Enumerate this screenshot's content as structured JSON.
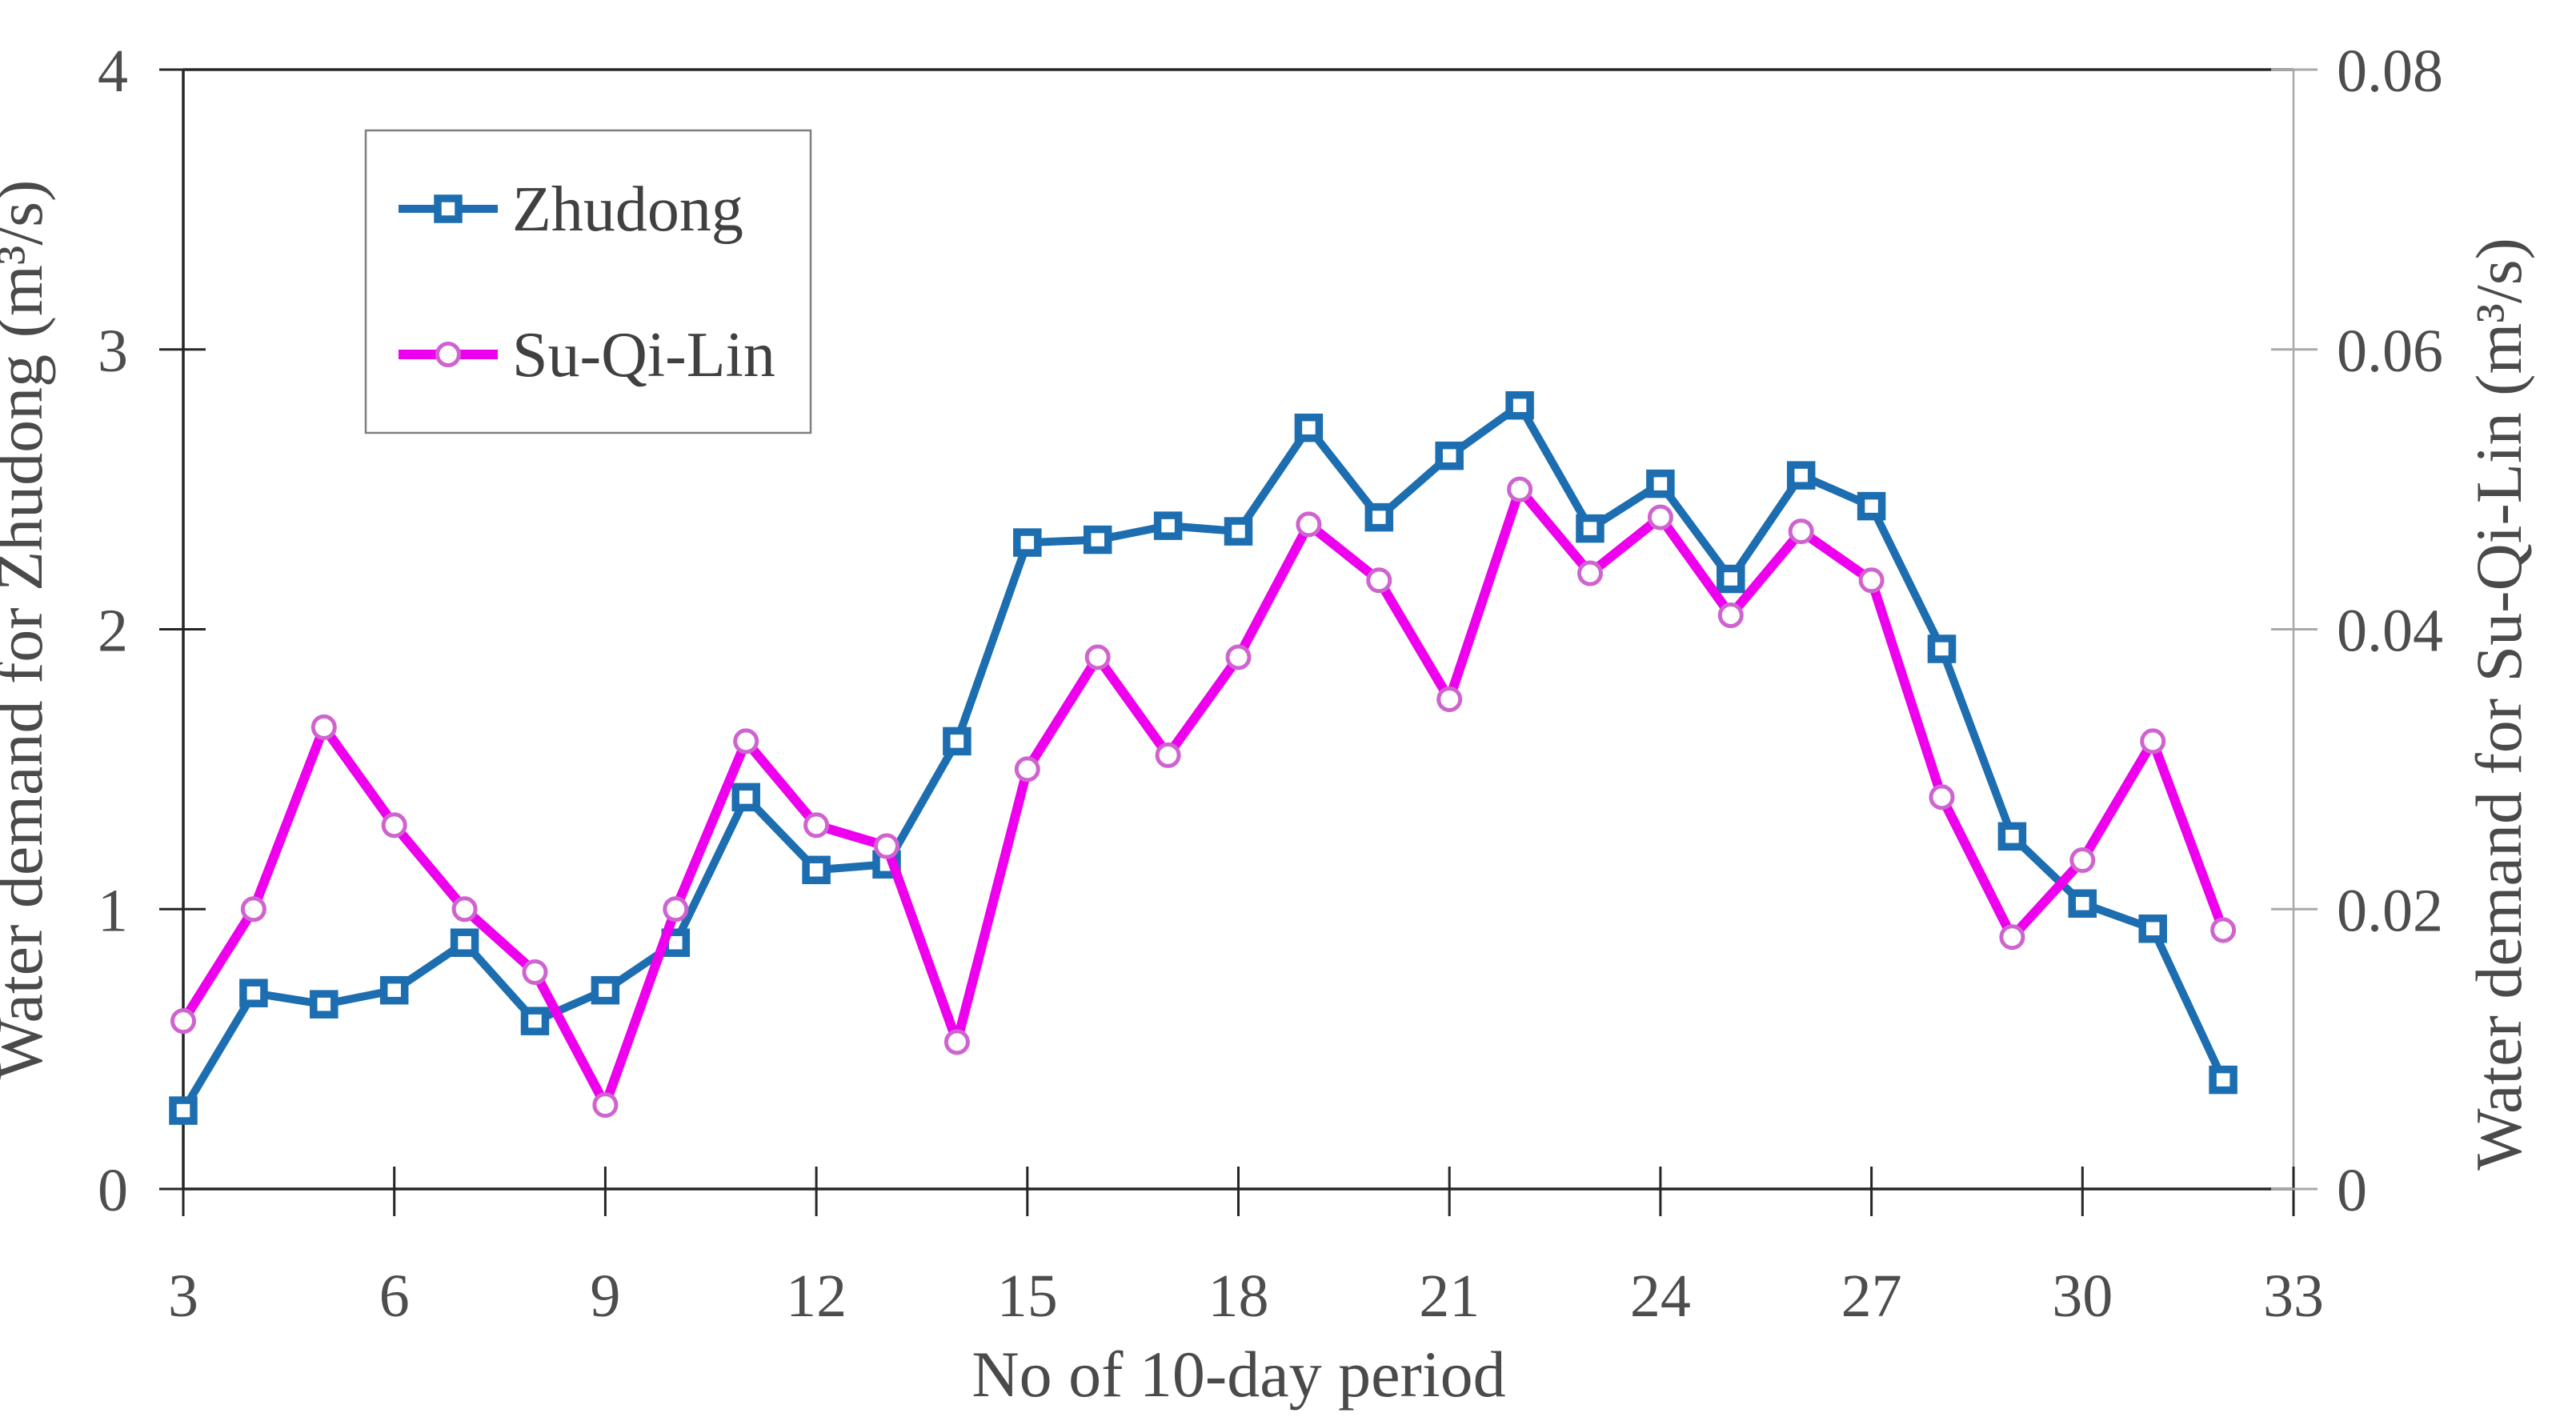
{
  "chart_data": {
    "type": "line",
    "title": "",
    "xlabel": "No of 10-day period",
    "x_range": [
      3,
      33
    ],
    "x_ticks": [
      3,
      6,
      9,
      12,
      15,
      18,
      21,
      24,
      27,
      30,
      33
    ],
    "x": [
      3,
      4,
      5,
      6,
      7,
      8,
      9,
      10,
      11,
      12,
      13,
      14,
      15,
      16,
      17,
      18,
      19,
      20,
      21,
      22,
      23,
      24,
      25,
      26,
      27,
      28,
      29,
      30,
      31,
      32
    ],
    "y_left": {
      "label": "Water demand for Zhudong (m³/s)",
      "range": [
        0,
        4
      ],
      "ticks": [
        0,
        1,
        2,
        3,
        4
      ]
    },
    "y_right": {
      "label": "Water demand for Su-Qi-Lin (m³/s)",
      "range": [
        0,
        0.08
      ],
      "ticks": [
        0,
        0.02,
        0.04,
        0.06,
        0.08
      ]
    },
    "grid": false,
    "legend": {
      "position": "top-left-inside",
      "entries": [
        "Zhudong",
        "Su-Qi-Lin"
      ]
    },
    "series": [
      {
        "name": "Zhudong",
        "axis": "left",
        "marker": "square",
        "color": "#1C6EB0",
        "marker_stroke": "#1C6EB0",
        "line_width": 10,
        "values": [
          0.28,
          0.7,
          0.66,
          0.71,
          0.88,
          0.6,
          0.71,
          0.88,
          1.4,
          1.14,
          1.16,
          1.6,
          2.31,
          2.32,
          2.37,
          2.35,
          2.72,
          2.4,
          2.62,
          2.8,
          2.36,
          2.52,
          2.18,
          2.55,
          2.44,
          1.93,
          1.26,
          1.02,
          0.93,
          0.39
        ]
      },
      {
        "name": "Su-Qi-Lin",
        "axis": "right",
        "marker": "circle",
        "color": "#EE00EE",
        "marker_stroke": "#CF63CF",
        "line_width": 12,
        "values": [
          0.012,
          0.02,
          0.033,
          0.026,
          0.02,
          0.0155,
          0.006,
          0.02,
          0.032,
          0.026,
          0.0245,
          0.0105,
          0.03,
          0.038,
          0.031,
          0.038,
          0.0475,
          0.0435,
          0.035,
          0.05,
          0.044,
          0.048,
          0.041,
          0.047,
          0.0435,
          0.028,
          0.018,
          0.0235,
          0.032,
          0.0185
        ]
      }
    ]
  },
  "styles": {
    "background": "#FFFFFF",
    "axis_color": "#262626",
    "right_axis_color": "#A9A9A9",
    "legend_border": "#7F7F7F",
    "marker_fill": "#FFFFFF"
  }
}
